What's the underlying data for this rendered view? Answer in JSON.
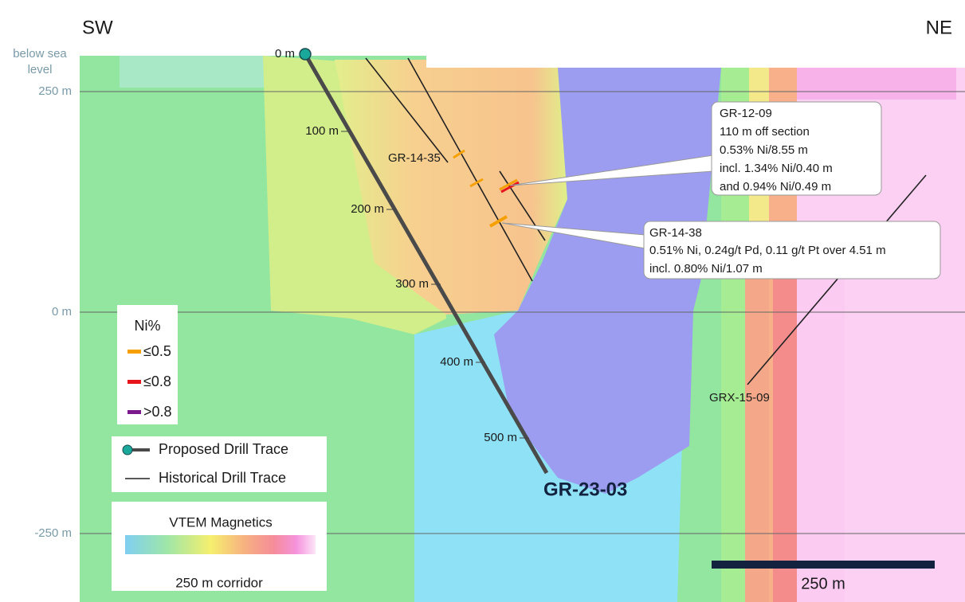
{
  "header": {
    "left": "SW",
    "right": "NE"
  },
  "elevation_axis": {
    "title": [
      "below sea",
      "level"
    ],
    "labels": [
      "250 m",
      "0 m",
      "-250 m"
    ]
  },
  "proposed_drill": {
    "name": "GR-23-03",
    "depth_labels": [
      "0 m",
      "100 m",
      "200 m",
      "300 m",
      "400 m",
      "500 m"
    ]
  },
  "historical_drills": [
    {
      "name": "GR-14-35"
    },
    {
      "name": "GRX-15-09"
    }
  ],
  "callouts": [
    {
      "title": "GR-12-09",
      "lines": [
        "110 m off section",
        "0.53% Ni/8.55 m",
        "incl. 1.34% Ni/0.40 m",
        "and 0.94% Ni/0.49 m"
      ]
    },
    {
      "title": "GR-14-38",
      "lines": [
        "0.51% Ni, 0.24g/t Pd, 0.11 g/t Pt over 4.51 m",
        "incl. 0.80% Ni/1.07 m"
      ]
    }
  ],
  "legend": {
    "ni_title": "Ni%",
    "ni_classes": [
      "≤0.5",
      "≤0.8",
      ">0.8"
    ],
    "traces": [
      "Proposed Drill Trace",
      "Historical Drill Trace"
    ],
    "magnetics_title": "VTEM Magnetics",
    "corridor": "250 m corridor"
  },
  "scale_bar": "250 m"
}
